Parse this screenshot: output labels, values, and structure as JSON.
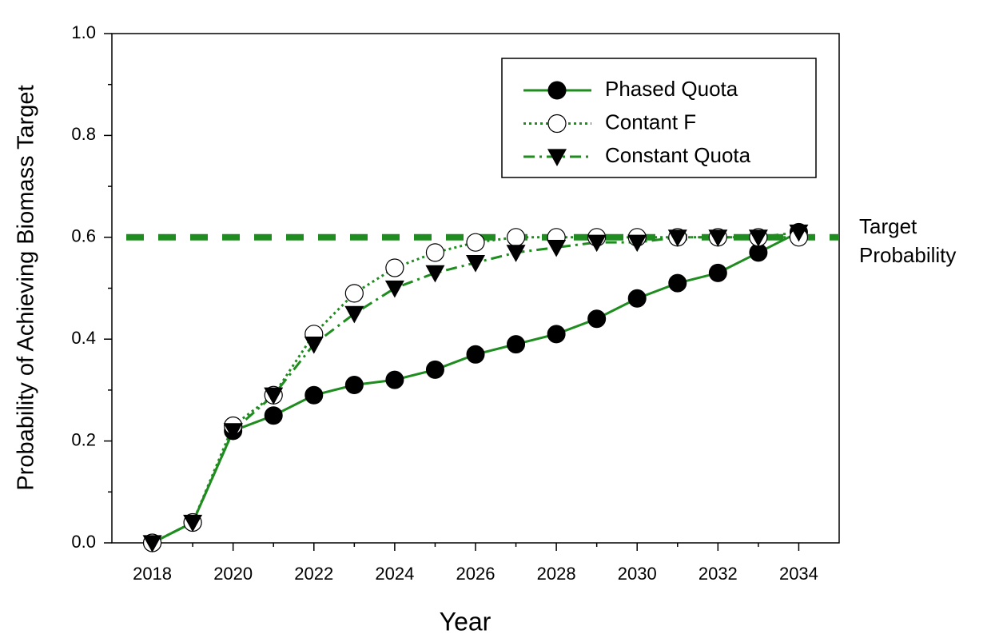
{
  "chart_data": {
    "type": "line",
    "x_label": "Year",
    "y_label": "Probability of Achieving Biomass Target",
    "x": [
      2018,
      2019,
      2020,
      2021,
      2022,
      2023,
      2024,
      2025,
      2026,
      2027,
      2028,
      2029,
      2030,
      2031,
      2032,
      2033,
      2034
    ],
    "series": [
      {
        "name": "Phased Quota",
        "color": "#1e8c1e",
        "dash": "solid",
        "marker": "filled-circle",
        "values": [
          0,
          0.04,
          0.22,
          0.25,
          0.29,
          0.31,
          0.32,
          0.34,
          0.37,
          0.39,
          0.41,
          0.44,
          0.48,
          0.51,
          0.53,
          0.57,
          0.61
        ]
      },
      {
        "name": "Contant F",
        "color": "#1e8c1e",
        "dash": "dotted",
        "marker": "open-circle",
        "values": [
          0,
          0.04,
          0.23,
          0.29,
          0.41,
          0.49,
          0.54,
          0.57,
          0.59,
          0.6,
          0.6,
          0.6,
          0.6,
          0.6,
          0.6,
          0.6,
          0.6
        ]
      },
      {
        "name": "Constant Quota",
        "color": "#1e8c1e",
        "dash": "dash-dot",
        "marker": "filled-triangle-down",
        "values": [
          0,
          0.04,
          0.22,
          0.29,
          0.39,
          0.45,
          0.5,
          0.53,
          0.55,
          0.57,
          0.58,
          0.59,
          0.59,
          0.6,
          0.6,
          0.6,
          0.61
        ]
      }
    ],
    "target_value": 0.6,
    "target_color": "#1e8c1e",
    "target_label_lines": [
      "Target",
      "Probability"
    ],
    "xlim": [
      2017,
      2035
    ],
    "xticks": [
      2018,
      2020,
      2022,
      2024,
      2026,
      2028,
      2030,
      2032,
      2034
    ],
    "x_minor_ticks": [
      2019,
      2021,
      2023,
      2025,
      2027,
      2029,
      2031,
      2033
    ],
    "ylim": [
      0,
      1
    ],
    "yticks": [
      {
        "value": 0,
        "label": "0.0"
      },
      0.2,
      0.4,
      0.6,
      0.8,
      {
        "value": 1,
        "label": "1.0"
      }
    ],
    "y_minor_ticks": [
      0.1,
      0.3,
      0.5,
      0.7,
      0.9
    ],
    "legend": "upper right"
  }
}
